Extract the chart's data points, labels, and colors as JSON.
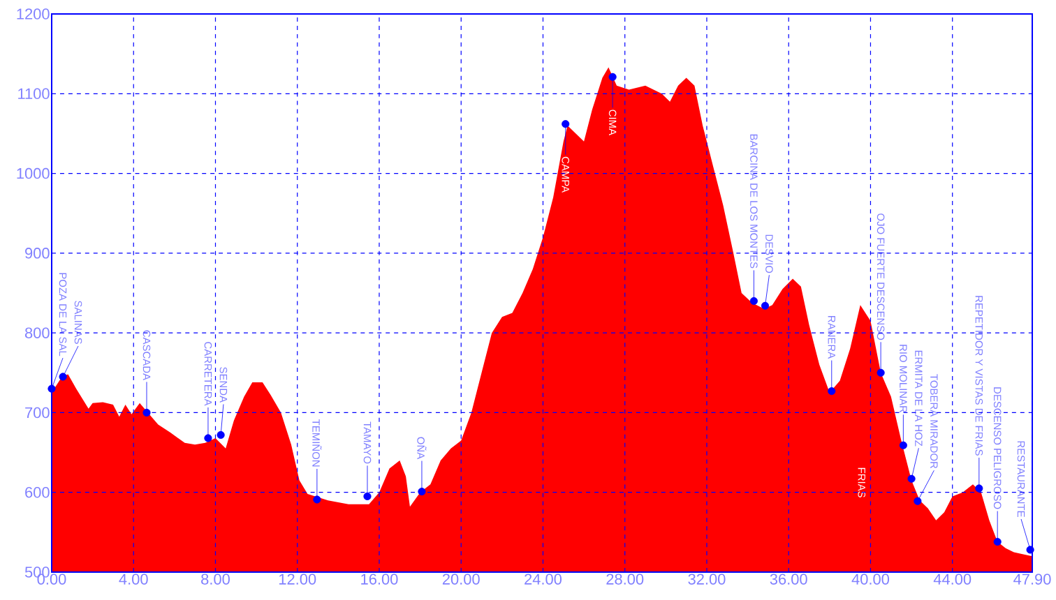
{
  "chart_data": {
    "type": "area",
    "xlim": [
      0,
      47.9
    ],
    "ylim": [
      500,
      1200
    ],
    "xticks": [
      {
        "value": 0,
        "label": "0.00"
      },
      {
        "value": 4,
        "label": "4.00"
      },
      {
        "value": 8,
        "label": "8.00"
      },
      {
        "value": 12,
        "label": "12.00"
      },
      {
        "value": 16,
        "label": "16.00"
      },
      {
        "value": 20,
        "label": "20.00"
      },
      {
        "value": 24,
        "label": "24.00"
      },
      {
        "value": 28,
        "label": "28.00"
      },
      {
        "value": 32,
        "label": "32.00"
      },
      {
        "value": 36,
        "label": "36.00"
      },
      {
        "value": 40,
        "label": "40.00"
      },
      {
        "value": 44,
        "label": "44.00"
      },
      {
        "value": 47.9,
        "label": "47.90"
      }
    ],
    "yticks": [
      500,
      600,
      700,
      800,
      900,
      1000,
      1100,
      1200
    ],
    "grid": true,
    "series": [
      {
        "color": "#ff0000",
        "marker": "none",
        "x": [
          0,
          0.5,
          0.8,
          1.2,
          1.8,
          2.0,
          2.5,
          3.0,
          3.3,
          3.6,
          3.9,
          4.3,
          4.7,
          5.2,
          5.8,
          6.5,
          7.0,
          7.5,
          8.0,
          8.5,
          8.9,
          9.4,
          9.8,
          10.3,
          10.7,
          11.2,
          11.7,
          12.1,
          12.5,
          13.5,
          14.5,
          15.5,
          16.0,
          16.5,
          17.0,
          17.3,
          17.5,
          18.0,
          18.5,
          19.0,
          19.5,
          20.0,
          20.5,
          21.0,
          21.5,
          22.0,
          22.5,
          23.0,
          23.5,
          24.0,
          24.5,
          25.0,
          25.2,
          25.6,
          26.0,
          26.4,
          26.9,
          27.2,
          27.6,
          28.2,
          29.0,
          29.8,
          30.2,
          30.6,
          31.0,
          31.4,
          31.8,
          32.3,
          32.8,
          33.3,
          33.7,
          34.2,
          34.8,
          35.2,
          35.7,
          36.2,
          36.6,
          37.0,
          37.5,
          38.0,
          38.5,
          39.0,
          39.5,
          40.0,
          40.5,
          41.0,
          41.5,
          42.0,
          42.4,
          42.8,
          43.2,
          43.6,
          44.0,
          44.5,
          45.0,
          45.4,
          45.8,
          46.2,
          46.6,
          47.0,
          47.5,
          47.9
        ],
        "values": [
          725,
          745,
          748,
          730,
          705,
          712,
          713,
          710,
          695,
          710,
          698,
          712,
          700,
          685,
          675,
          662,
          660,
          662,
          668,
          655,
          690,
          720,
          738,
          738,
          722,
          700,
          660,
          615,
          598,
          590,
          585,
          585,
          600,
          630,
          640,
          620,
          582,
          600,
          610,
          640,
          655,
          665,
          700,
          750,
          800,
          820,
          825,
          850,
          880,
          920,
          970,
          1040,
          1060,
          1050,
          1040,
          1080,
          1120,
          1133,
          1110,
          1105,
          1110,
          1100,
          1090,
          1110,
          1120,
          1110,
          1060,
          1010,
          960,
          900,
          850,
          838,
          830,
          835,
          855,
          868,
          858,
          810,
          760,
          725,
          740,
          780,
          835,
          815,
          750,
          720,
          665,
          615,
          590,
          580,
          565,
          575,
          595,
          600,
          610,
          600,
          565,
          538,
          530,
          525,
          522,
          520
        ]
      },
      {
        "type": "scatter",
        "color": "#0000ff",
        "marker": "circle",
        "x": [
          0,
          0.55,
          4.64,
          7.64,
          8.26,
          12.96,
          15.42,
          18.08,
          25.1,
          27.4,
          34.3,
          34.85,
          38.1,
          40.5,
          41.6,
          42.0,
          42.3,
          45.3,
          46.2,
          47.8
        ],
        "values": [
          730,
          745,
          700,
          668,
          672,
          591,
          595,
          601,
          1062,
          1121,
          840,
          834,
          727,
          750,
          659,
          617,
          589,
          605,
          538,
          528
        ]
      }
    ],
    "annotations": [
      {
        "text": "POZA DE LA SAL",
        "x": 0,
        "y": 730
      },
      {
        "text": "SALINAS",
        "x": 0.55,
        "y": 745
      },
      {
        "text": "CASCADA",
        "x": 4.64,
        "y": 700
      },
      {
        "text": "CARRETERA",
        "x": 7.64,
        "y": 668
      },
      {
        "text": "SENDA",
        "x": 8.26,
        "y": 672
      },
      {
        "text": "TEMIÑON",
        "x": 12.96,
        "y": 591
      },
      {
        "text": "TAMAYO",
        "x": 15.42,
        "y": 595
      },
      {
        "text": "OÑA",
        "x": 18.08,
        "y": 601
      },
      {
        "text": "CAMPA",
        "x": 25.1,
        "y": 1062
      },
      {
        "text": "CIMA",
        "x": 27.4,
        "y": 1121
      },
      {
        "text": "BARCINA DE LOS MONTES",
        "x": 34.3,
        "y": 840
      },
      {
        "text": "DESVIO",
        "x": 34.85,
        "y": 834
      },
      {
        "text": "RANERA",
        "x": 38.1,
        "y": 727
      },
      "FRIAS",
      {
        "text": "OJO FUERTE DESCENSO",
        "x": 40.5,
        "y": 750
      },
      {
        "text": "RIO MOLINAR",
        "x": 41.6,
        "y": 659
      },
      {
        "text": "ERMITA DE LA HOZ",
        "x": 42.0,
        "y": 617
      },
      {
        "text": "TOBERA MIRADOR",
        "x": 42.3,
        "y": 589
      },
      {
        "text": "REPETIDOR Y VISTAS DE FRIAS",
        "x": 45.3,
        "y": 605
      },
      {
        "text": "DESCENSO PELIGROSO",
        "x": 46.2,
        "y": 538
      },
      {
        "text": "RESTAURANTE",
        "x": 47.8,
        "y": 528
      }
    ]
  }
}
